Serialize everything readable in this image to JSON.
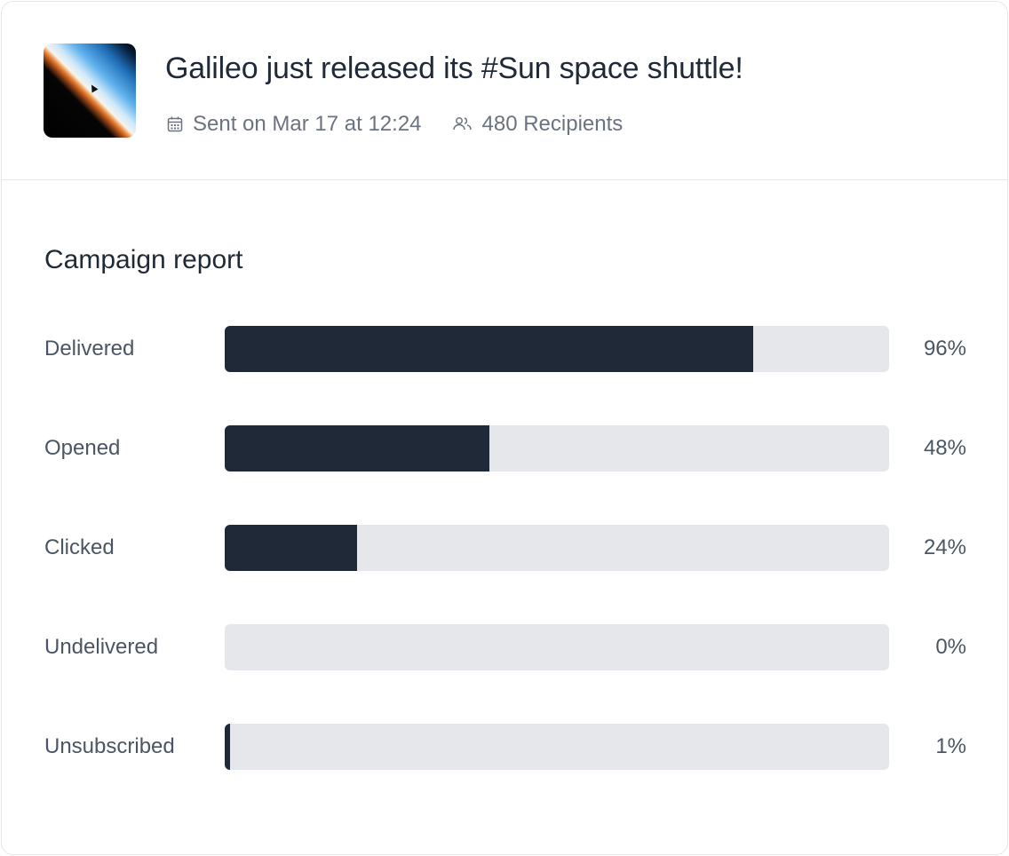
{
  "campaign": {
    "title": "Galileo just released its #Sun space shuttle!",
    "sent": "Sent on Mar 17 at 12:24",
    "recipients": "480 Recipients",
    "icons": {
      "sent": "calendar-icon",
      "recipients": "users-icon"
    }
  },
  "report": {
    "title": "Campaign report",
    "bar_color": "#1f2937",
    "track_color": "#e5e7eb",
    "rows": [
      {
        "label": "Delivered",
        "value": "96%",
        "fill": 0.795
      },
      {
        "label": "Opened",
        "value": "48%",
        "fill": 0.398
      },
      {
        "label": "Clicked",
        "value": "24%",
        "fill": 0.199
      },
      {
        "label": "Undelivered",
        "value": "0%",
        "fill": 0
      },
      {
        "label": "Unsubscribed",
        "value": "1%",
        "fill": 0.008
      }
    ]
  }
}
